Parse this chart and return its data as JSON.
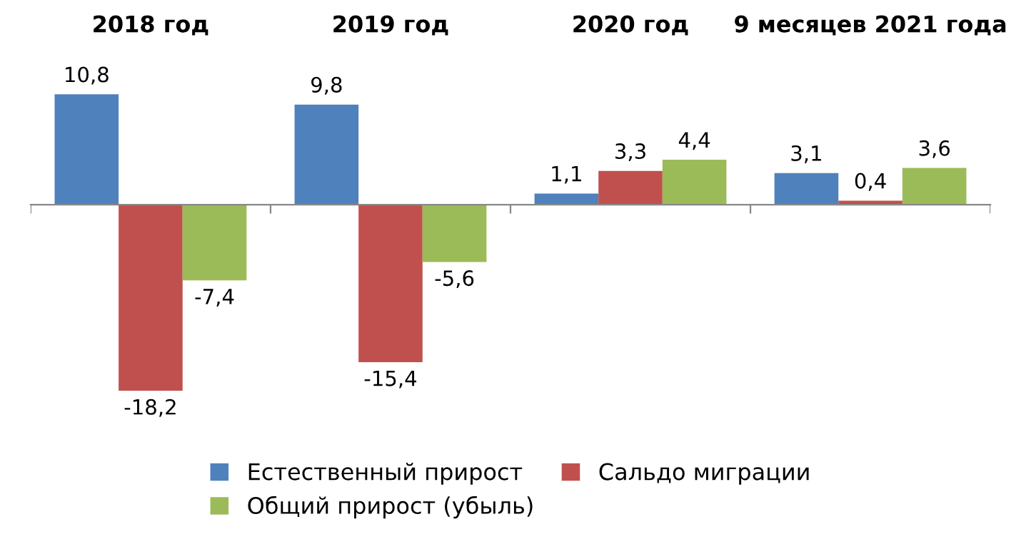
{
  "chart_data": {
    "type": "bar",
    "categories": [
      "2018 год",
      "2019 год",
      "2020 год",
      "9 месяцев 2021 года"
    ],
    "series": [
      {
        "name": "Естественный прирост",
        "color": "#4f81bd",
        "values": [
          10.8,
          9.8,
          1.1,
          3.1
        ],
        "value_labels": [
          "10,8",
          "9,8",
          "1,1",
          "3,1"
        ]
      },
      {
        "name": "Сальдо миграции",
        "color": "#c0504d",
        "values": [
          -18.2,
          -15.4,
          3.3,
          0.4
        ],
        "value_labels": [
          "-18,2",
          "-15,4",
          "3,3",
          "0,4"
        ]
      },
      {
        "name": "Общий прирост (убыль)",
        "color": "#9bbb59",
        "values": [
          -7.4,
          -5.6,
          4.4,
          3.6
        ],
        "value_labels": [
          "-7,4",
          "-5,6",
          "4,4",
          "3,6"
        ]
      }
    ],
    "legend": "bottom",
    "grid": false
  }
}
